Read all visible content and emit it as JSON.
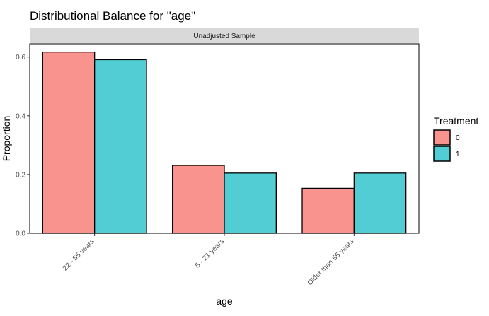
{
  "chart_data": {
    "type": "bar",
    "title": "Distributional Balance for \"age\"",
    "facet_label": "Unadjusted Sample",
    "xlabel": "age",
    "ylabel": "Proportion",
    "categories": [
      "22 - 55 years",
      "5 - 21 years",
      "Older than 55 years"
    ],
    "series": [
      {
        "name": "0",
        "values": [
          0.617,
          0.231,
          0.153
        ]
      },
      {
        "name": "1",
        "values": [
          0.591,
          0.205,
          0.205
        ]
      }
    ],
    "ylim": [
      0,
      0.645
    ],
    "yticks": [
      0.0,
      0.2,
      0.4,
      0.6
    ],
    "ytick_labels": [
      "0.0",
      "0.2",
      "0.4",
      "0.6"
    ],
    "grid": false,
    "legend": {
      "title": "Treatment",
      "placement": "right"
    },
    "colors": {
      "0": "#F8938E",
      "1": "#52CDD3"
    }
  }
}
